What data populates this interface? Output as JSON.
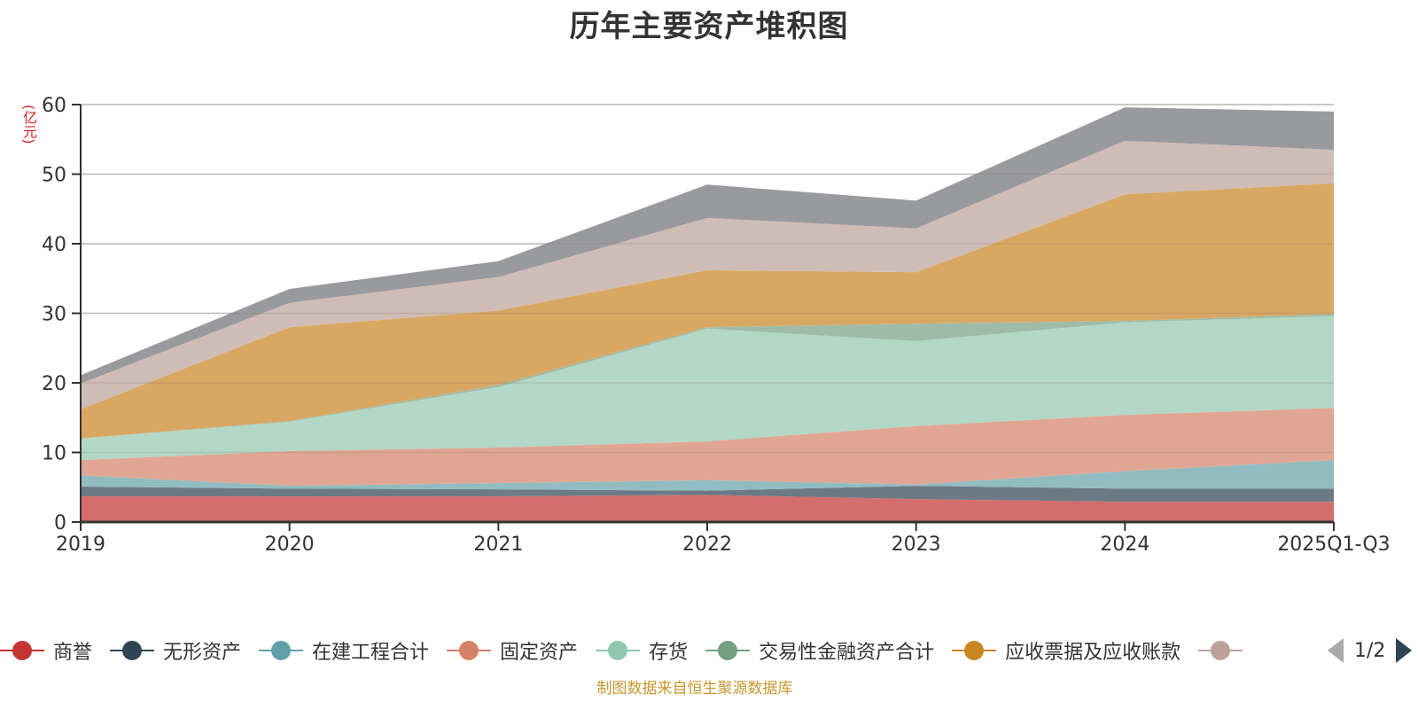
{
  "chart_data": {
    "type": "area",
    "stacked": true,
    "title": "历年主要资产堆积图",
    "ylabel": "(亿元)",
    "xlabel": "",
    "ylim": [
      0,
      60
    ],
    "yticks": [
      0,
      10,
      20,
      30,
      40,
      50,
      60
    ],
    "grid": true,
    "legend_position": "bottom",
    "categories": [
      "2019",
      "2020",
      "2021",
      "2022",
      "2023",
      "2024",
      "2025Q1-Q3"
    ],
    "series": [
      {
        "name": "商誉",
        "color": "#c23531",
        "fill": "#d46e6c",
        "values": [
          3.7,
          3.7,
          3.7,
          3.9,
          3.3,
          2.9,
          2.9
        ]
      },
      {
        "name": "无形资产",
        "color": "#2f4554",
        "fill": "#6c7a86",
        "values": [
          1.4,
          1.1,
          1.0,
          0.6,
          1.9,
          1.9,
          1.9
        ]
      },
      {
        "name": "在建工程合计",
        "color": "#61a0a8",
        "fill": "#91bcc2",
        "values": [
          1.6,
          0.4,
          0.9,
          1.5,
          0.2,
          2.5,
          4.1
        ]
      },
      {
        "name": "固定资产",
        "color": "#d48265",
        "fill": "#e0a693",
        "values": [
          2.2,
          5.0,
          5.1,
          5.6,
          8.4,
          8.1,
          7.5
        ]
      },
      {
        "name": "存货",
        "color": "#91c7ae",
        "fill": "#b2d7c6",
        "values": [
          3.1,
          4.2,
          8.7,
          16.2,
          12.2,
          13.3,
          13.2
        ]
      },
      {
        "name": "交易性金融资产合计",
        "color": "#749f83",
        "fill": "#9dbba8",
        "values": [
          0.0,
          0.1,
          0.3,
          0.2,
          2.5,
          0.2,
          0.3
        ]
      },
      {
        "name": "应收票据及应收账款",
        "color": "#ca8622",
        "fill": "#d8a863",
        "values": [
          4.2,
          13.5,
          10.7,
          8.2,
          7.4,
          18.2,
          18.8
        ]
      },
      {
        "name": "",
        "color": "#bda29a",
        "fill": "#d0bcb6",
        "values": [
          3.7,
          3.5,
          4.8,
          7.5,
          6.3,
          7.7,
          4.8
        ]
      },
      {
        "name": "",
        "color": "#6e7074",
        "fill": "#999a9e",
        "values": [
          1.2,
          2.0,
          2.3,
          4.8,
          4.0,
          4.8,
          5.5
        ]
      }
    ]
  },
  "legend": {
    "visible_count": 8,
    "page_text": "1/2"
  },
  "footer": {
    "source": "制图数据来自恒生聚源数据库"
  }
}
